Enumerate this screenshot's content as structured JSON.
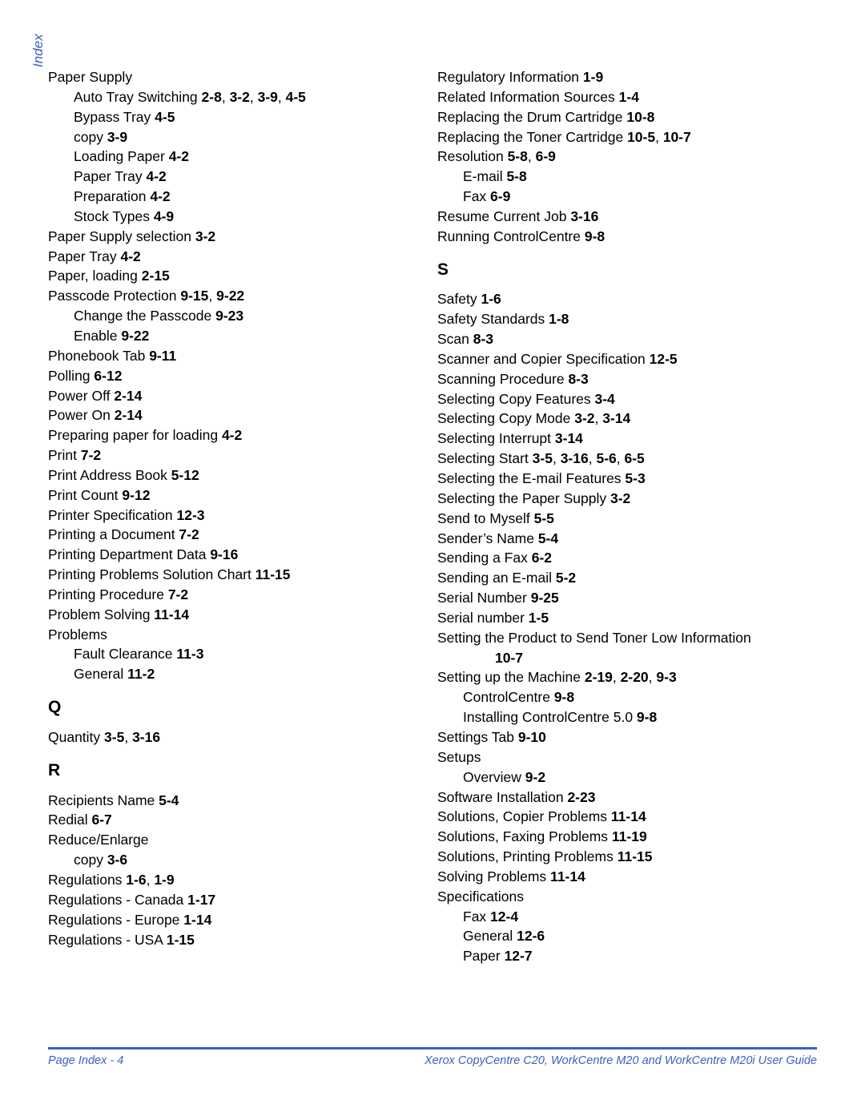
{
  "side_label": "Index",
  "footer": {
    "left": "Page Index - 4",
    "right": "Xerox CopyCentre C20, WorkCentre M20 and WorkCentre M20i User Guide"
  },
  "left_column": [
    {
      "indent": 0,
      "text": "Paper Supply",
      "ref": ""
    },
    {
      "indent": 1,
      "text": "Auto Tray Switching ",
      "ref": "2-8, 3-2, 3-9, 4-5"
    },
    {
      "indent": 1,
      "text": "Bypass Tray ",
      "ref": "4-5"
    },
    {
      "indent": 1,
      "text": "copy ",
      "ref": "3-9"
    },
    {
      "indent": 1,
      "text": "Loading Paper ",
      "ref": "4-2"
    },
    {
      "indent": 1,
      "text": "Paper Tray ",
      "ref": "4-2"
    },
    {
      "indent": 1,
      "text": "Preparation ",
      "ref": "4-2"
    },
    {
      "indent": 1,
      "text": "Stock Types ",
      "ref": "4-9"
    },
    {
      "indent": 0,
      "text": "Paper Supply selection ",
      "ref": "3-2"
    },
    {
      "indent": 0,
      "text": "Paper Tray ",
      "ref": "4-2"
    },
    {
      "indent": 0,
      "text": "Paper, loading ",
      "ref": "2-15"
    },
    {
      "indent": 0,
      "text": "Passcode Protection ",
      "ref": "9-15, 9-22"
    },
    {
      "indent": 1,
      "text": "Change the Passcode ",
      "ref": "9-23"
    },
    {
      "indent": 1,
      "text": "Enable ",
      "ref": "9-22"
    },
    {
      "indent": 0,
      "text": "Phonebook Tab ",
      "ref": "9-11"
    },
    {
      "indent": 0,
      "text": "Polling ",
      "ref": "6-12"
    },
    {
      "indent": 0,
      "text": "Power Off ",
      "ref": "2-14"
    },
    {
      "indent": 0,
      "text": "Power On ",
      "ref": "2-14"
    },
    {
      "indent": 0,
      "text": "Preparing paper for loading ",
      "ref": "4-2"
    },
    {
      "indent": 0,
      "text": "Print ",
      "ref": "7-2"
    },
    {
      "indent": 0,
      "text": "Print Address Book ",
      "ref": "5-12"
    },
    {
      "indent": 0,
      "text": "Print Count ",
      "ref": "9-12"
    },
    {
      "indent": 0,
      "text": "Printer Specification ",
      "ref": "12-3"
    },
    {
      "indent": 0,
      "text": "Printing a Document ",
      "ref": "7-2"
    },
    {
      "indent": 0,
      "text": "Printing Department Data ",
      "ref": "9-16"
    },
    {
      "indent": 0,
      "text": "Printing Problems Solution Chart ",
      "ref": "11-15"
    },
    {
      "indent": 0,
      "text": "Printing Procedure ",
      "ref": "7-2"
    },
    {
      "indent": 0,
      "text": "Problem Solving ",
      "ref": "11-14"
    },
    {
      "indent": 0,
      "text": "Problems",
      "ref": ""
    },
    {
      "indent": 1,
      "text": "Fault Clearance ",
      "ref": "11-3"
    },
    {
      "indent": 1,
      "text": "General ",
      "ref": "11-2"
    },
    {
      "indent": 0,
      "letter": "Q"
    },
    {
      "indent": 0,
      "text": "Quantity ",
      "ref": "3-5, 3-16"
    },
    {
      "indent": 0,
      "letter": "R"
    },
    {
      "indent": 0,
      "text": "Recipients Name ",
      "ref": "5-4"
    },
    {
      "indent": 0,
      "text": "Redial ",
      "ref": "6-7"
    },
    {
      "indent": 0,
      "text": "Reduce/Enlarge",
      "ref": ""
    },
    {
      "indent": 1,
      "text": "copy ",
      "ref": "3-6"
    },
    {
      "indent": 0,
      "text": "Regulations ",
      "ref": "1-6, 1-9"
    },
    {
      "indent": 0,
      "text": "Regulations - Canada ",
      "ref": "1-17"
    },
    {
      "indent": 0,
      "text": "Regulations - Europe ",
      "ref": "1-14"
    },
    {
      "indent": 0,
      "text": "Regulations - USA ",
      "ref": "1-15"
    }
  ],
  "right_column": [
    {
      "indent": 0,
      "text": "Regulatory Information ",
      "ref": "1-9"
    },
    {
      "indent": 0,
      "text": "Related Information Sources ",
      "ref": "1-4"
    },
    {
      "indent": 0,
      "text": "Replacing the Drum Cartridge ",
      "ref": "10-8"
    },
    {
      "indent": 0,
      "text": "Replacing the Toner Cartridge ",
      "ref": "10-5, 10-7"
    },
    {
      "indent": 0,
      "text": "Resolution ",
      "ref": "5-8, 6-9"
    },
    {
      "indent": 1,
      "text": "E-mail ",
      "ref": "5-8"
    },
    {
      "indent": 1,
      "text": "Fax ",
      "ref": "6-9"
    },
    {
      "indent": 0,
      "text": "Resume Current Job ",
      "ref": "3-16"
    },
    {
      "indent": 0,
      "text": "Running ControlCentre ",
      "ref": "9-8"
    },
    {
      "indent": 0,
      "letter": "S"
    },
    {
      "indent": 0,
      "text": "Safety ",
      "ref": "1-6"
    },
    {
      "indent": 0,
      "text": "Safety Standards ",
      "ref": "1-8"
    },
    {
      "indent": 0,
      "text": "Scan ",
      "ref": "8-3"
    },
    {
      "indent": 0,
      "text": "Scanner and Copier Specification ",
      "ref": "12-5"
    },
    {
      "indent": 0,
      "text": "Scanning Procedure ",
      "ref": "8-3"
    },
    {
      "indent": 0,
      "text": "Selecting Copy Features ",
      "ref": "3-4"
    },
    {
      "indent": 0,
      "text": "Selecting Copy Mode ",
      "ref": "3-2, 3-14"
    },
    {
      "indent": 0,
      "text": "Selecting Interrupt ",
      "ref": "3-14"
    },
    {
      "indent": 0,
      "text": "Selecting Start ",
      "ref": "3-5, 3-16, 5-6, 6-5"
    },
    {
      "indent": 0,
      "text": "Selecting the E-mail Features ",
      "ref": "5-3"
    },
    {
      "indent": 0,
      "text": "Selecting the Paper Supply ",
      "ref": "3-2"
    },
    {
      "indent": 0,
      "text": "Send to Myself ",
      "ref": "5-5"
    },
    {
      "indent": 0,
      "text": "Sender’s Name ",
      "ref": "5-4"
    },
    {
      "indent": 0,
      "text": "Sending a Fax ",
      "ref": "6-2"
    },
    {
      "indent": 0,
      "text": "Sending an E-mail ",
      "ref": "5-2"
    },
    {
      "indent": 0,
      "text": "Serial Number ",
      "ref": "9-25"
    },
    {
      "indent": 0,
      "text": "Serial number ",
      "ref": "1-5"
    },
    {
      "indent": 0,
      "text": "Setting the Product to Send Toner Low Information",
      "ref": ""
    },
    {
      "indent": 2,
      "text": "",
      "ref": "10-7"
    },
    {
      "indent": 0,
      "text": "Setting up the Machine ",
      "ref": "2-19, 2-20, 9-3"
    },
    {
      "indent": 1,
      "text": "ControlCentre ",
      "ref": "9-8"
    },
    {
      "indent": 1,
      "text": "Installing ControlCentre 5.0 ",
      "ref": "9-8"
    },
    {
      "indent": 0,
      "text": "Settings Tab ",
      "ref": "9-10"
    },
    {
      "indent": 0,
      "text": "Setups",
      "ref": ""
    },
    {
      "indent": 1,
      "text": "Overview ",
      "ref": "9-2"
    },
    {
      "indent": 0,
      "text": "Software Installation ",
      "ref": "2-23"
    },
    {
      "indent": 0,
      "text": "Solutions, Copier Problems ",
      "ref": "11-14"
    },
    {
      "indent": 0,
      "text": "Solutions, Faxing Problems ",
      "ref": "11-19"
    },
    {
      "indent": 0,
      "text": "Solutions, Printing Problems ",
      "ref": "11-15"
    },
    {
      "indent": 0,
      "text": "Solving Problems ",
      "ref": "11-14"
    },
    {
      "indent": 0,
      "text": "Specifications",
      "ref": ""
    },
    {
      "indent": 1,
      "text": "Fax ",
      "ref": "12-4"
    },
    {
      "indent": 1,
      "text": "General ",
      "ref": "12-6"
    },
    {
      "indent": 1,
      "text": "Paper ",
      "ref": "12-7"
    }
  ]
}
